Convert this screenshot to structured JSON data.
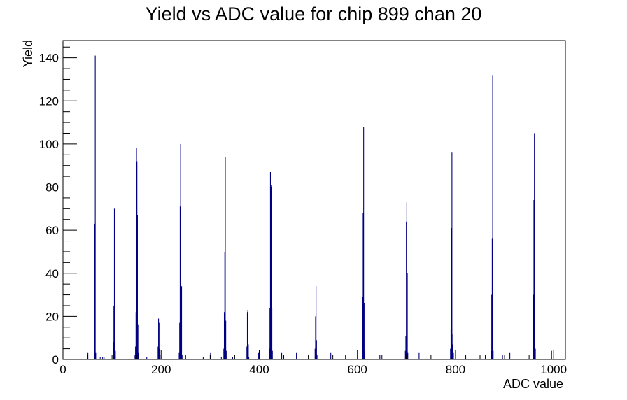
{
  "chart_data": {
    "type": "bar",
    "title": "Yield vs ADC value for chip 899 chan 20",
    "xlabel": "ADC value",
    "ylabel": "Yield",
    "xlim": [
      0,
      1024
    ],
    "ylim": [
      0,
      148
    ],
    "bin_width": 1,
    "x_ticks": [
      0,
      200,
      400,
      600,
      800,
      1000
    ],
    "y_ticks": [
      0,
      20,
      40,
      60,
      80,
      100,
      120,
      140
    ],
    "grid": false,
    "legend": "none",
    "colors": {
      "bars": "#000080",
      "axes": "#000000",
      "background": "#ffffff"
    },
    "bins": [
      [
        50,
        3
      ],
      [
        63,
        2
      ],
      [
        64,
        63
      ],
      [
        65,
        141
      ],
      [
        66,
        3
      ],
      [
        73,
        1
      ],
      [
        76,
        1
      ],
      [
        80,
        1
      ],
      [
        83,
        1
      ],
      [
        102,
        8
      ],
      [
        103,
        25
      ],
      [
        104,
        70
      ],
      [
        105,
        20
      ],
      [
        106,
        4
      ],
      [
        146,
        2
      ],
      [
        147,
        6
      ],
      [
        148,
        22
      ],
      [
        149,
        98
      ],
      [
        150,
        92
      ],
      [
        151,
        67
      ],
      [
        152,
        16
      ],
      [
        153,
        3
      ],
      [
        170,
        1
      ],
      [
        193,
        6
      ],
      [
        194,
        19
      ],
      [
        195,
        17
      ],
      [
        196,
        5
      ],
      [
        197,
        2
      ],
      [
        236,
        3
      ],
      [
        237,
        17
      ],
      [
        238,
        71
      ],
      [
        239,
        100
      ],
      [
        240,
        29
      ],
      [
        241,
        34
      ],
      [
        242,
        2
      ],
      [
        285,
        1
      ],
      [
        300,
        3
      ],
      [
        322,
        1
      ],
      [
        327,
        5
      ],
      [
        328,
        22
      ],
      [
        329,
        50
      ],
      [
        330,
        94
      ],
      [
        331,
        18
      ],
      [
        332,
        4
      ],
      [
        345,
        1
      ],
      [
        374,
        6
      ],
      [
        375,
        22
      ],
      [
        376,
        23
      ],
      [
        377,
        7
      ],
      [
        378,
        1
      ],
      [
        398,
        3
      ],
      [
        420,
        5
      ],
      [
        421,
        24
      ],
      [
        422,
        87
      ],
      [
        423,
        81
      ],
      [
        424,
        80
      ],
      [
        425,
        24
      ],
      [
        426,
        4
      ],
      [
        445,
        3
      ],
      [
        475,
        3
      ],
      [
        513,
        5
      ],
      [
        514,
        20
      ],
      [
        515,
        34
      ],
      [
        516,
        9
      ],
      [
        517,
        2
      ],
      [
        545,
        3
      ],
      [
        575,
        2
      ],
      [
        609,
        6
      ],
      [
        610,
        29
      ],
      [
        611,
        68
      ],
      [
        612,
        108
      ],
      [
        613,
        26
      ],
      [
        614,
        4
      ],
      [
        645,
        2
      ],
      [
        697,
        4
      ],
      [
        698,
        11
      ],
      [
        699,
        64
      ],
      [
        700,
        73
      ],
      [
        701,
        40
      ],
      [
        702,
        3
      ],
      [
        725,
        3
      ],
      [
        789,
        5
      ],
      [
        790,
        14
      ],
      [
        791,
        61
      ],
      [
        792,
        96
      ],
      [
        793,
        7
      ],
      [
        794,
        12
      ],
      [
        795,
        3
      ],
      [
        820,
        2
      ],
      [
        860,
        2
      ],
      [
        872,
        4
      ],
      [
        873,
        30
      ],
      [
        874,
        56
      ],
      [
        875,
        132
      ],
      [
        876,
        4
      ],
      [
        895,
        2
      ],
      [
        910,
        3
      ],
      [
        957,
        5
      ],
      [
        958,
        30
      ],
      [
        959,
        74
      ],
      [
        960,
        105
      ],
      [
        961,
        28
      ],
      [
        962,
        5
      ],
      [
        995,
        4
      ]
    ]
  }
}
